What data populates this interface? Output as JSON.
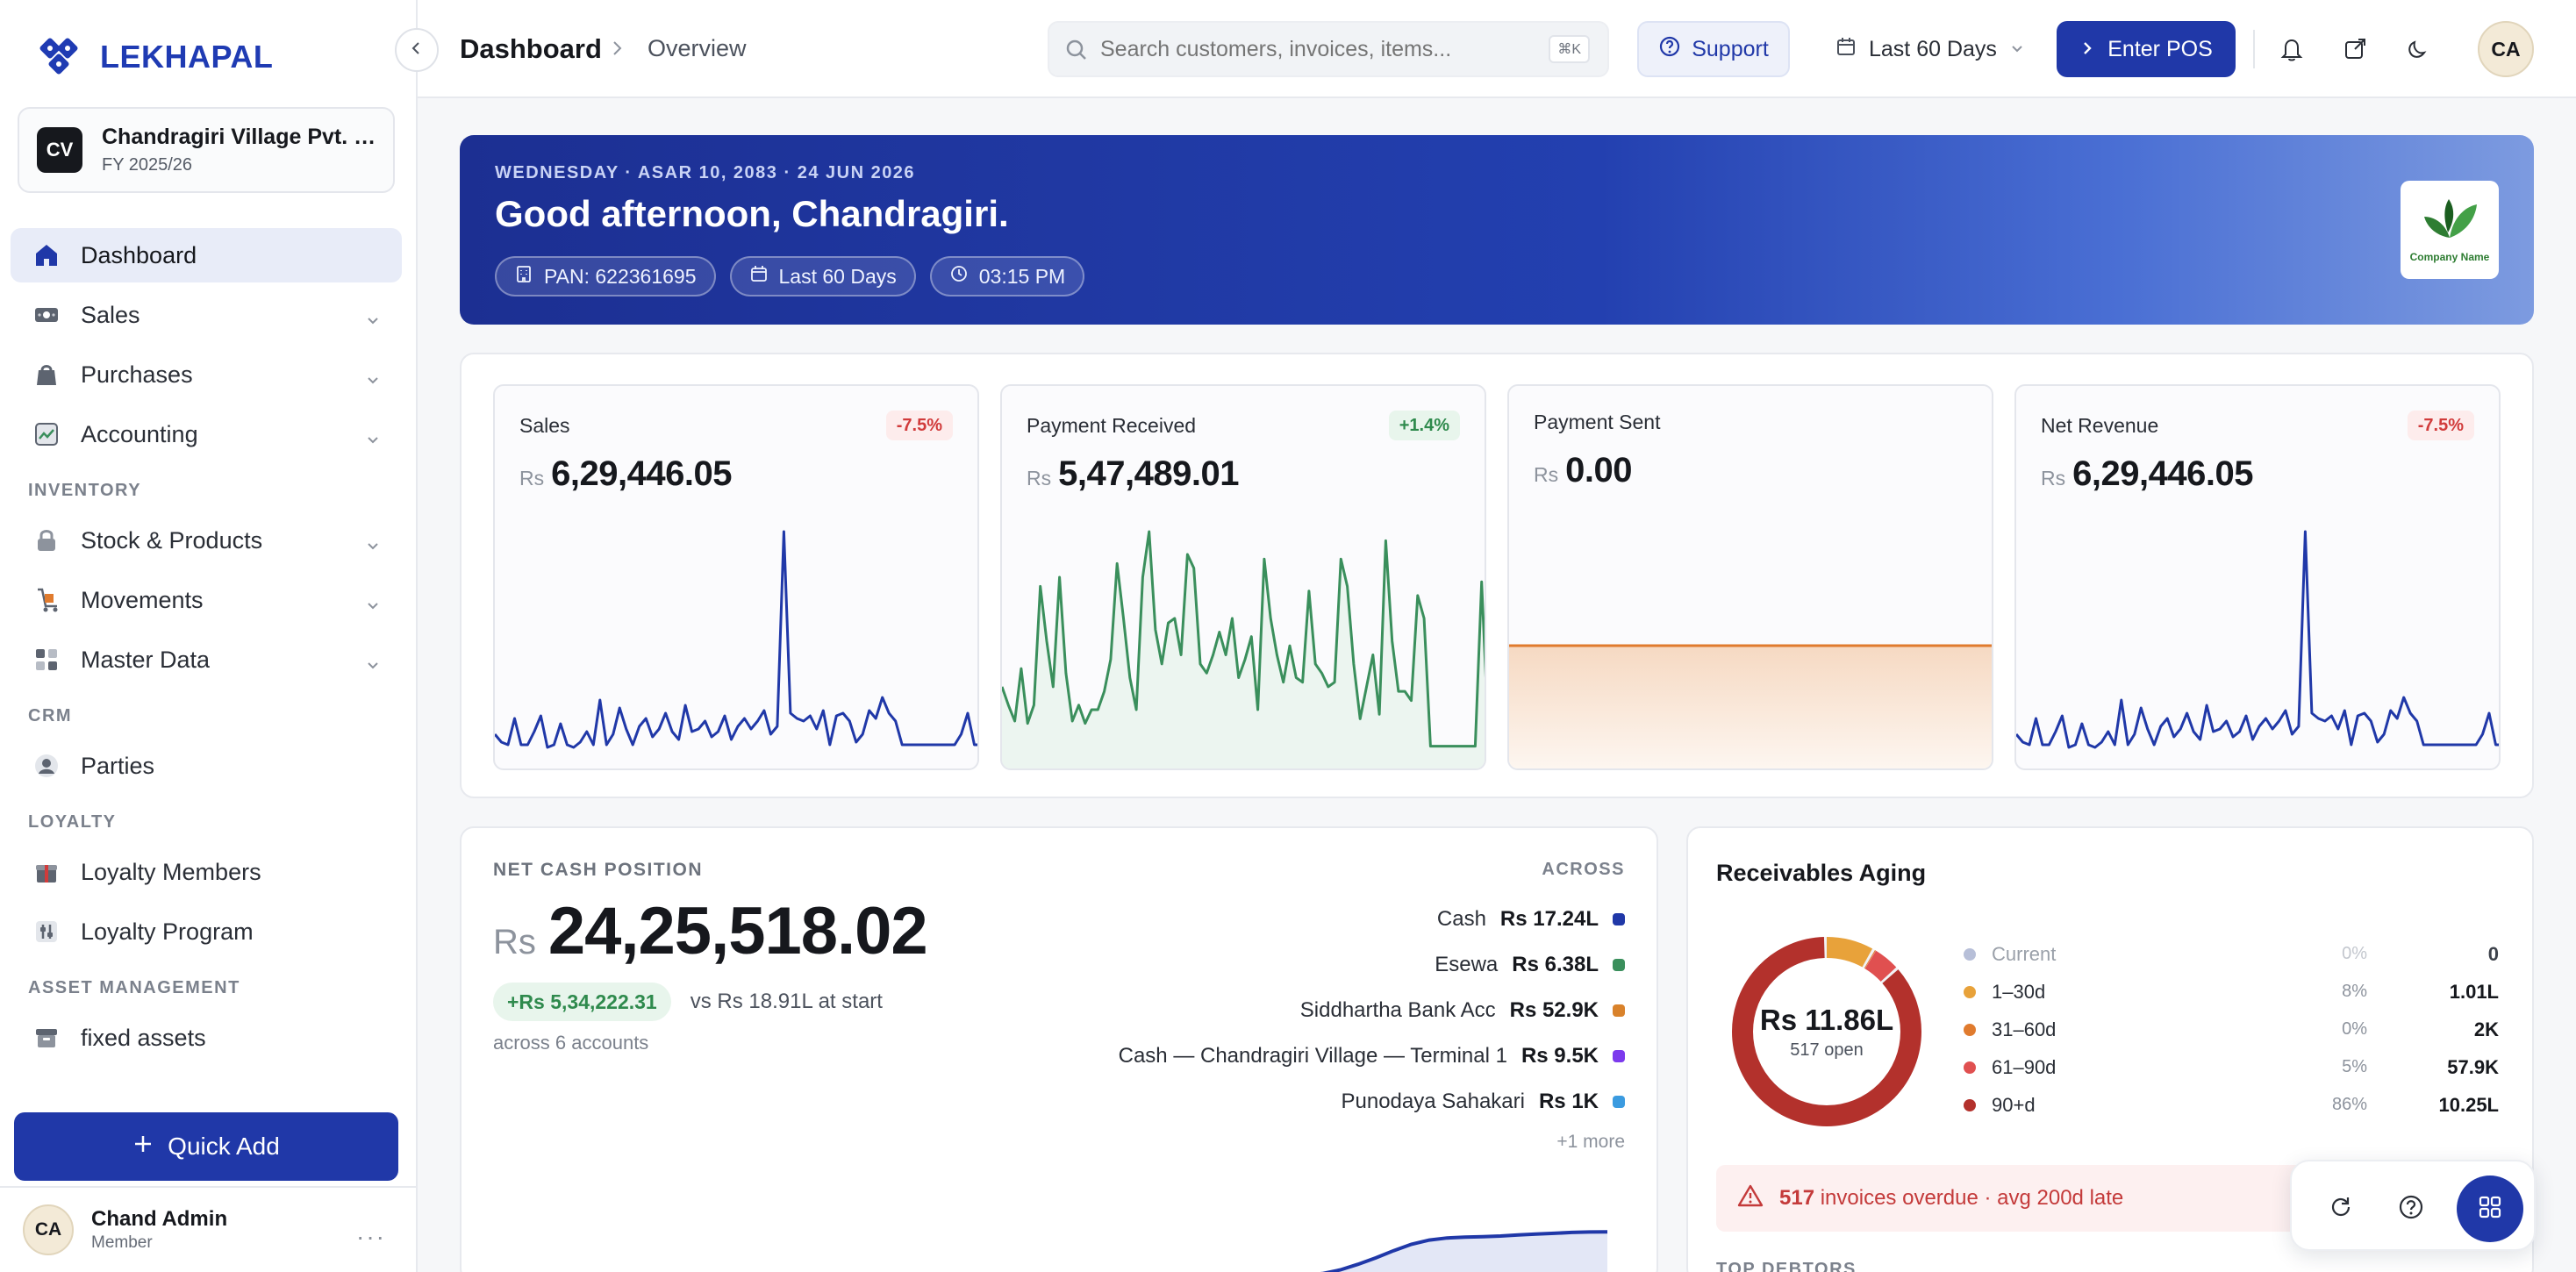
{
  "brand": {
    "name": "LEKHAPAL",
    "color": "#1f3bb3"
  },
  "company": {
    "initials": "CV",
    "name": "Chandragiri Village Pvt. Ltd.",
    "fy": "FY 2025/26"
  },
  "nav": {
    "items": [
      {
        "label": "Dashboard",
        "icon": "home-icon",
        "active": true
      },
      {
        "label": "Sales",
        "icon": "sales-icon",
        "chevron": true
      },
      {
        "label": "Purchases",
        "icon": "bag-icon",
        "chevron": true
      },
      {
        "label": "Accounting",
        "icon": "ledger-icon",
        "chevron": true
      }
    ],
    "sections": [
      {
        "title": "INVENTORY",
        "items": [
          {
            "label": "Stock & Products",
            "icon": "lock-box-icon",
            "chevron": true
          },
          {
            "label": "Movements",
            "icon": "dolly-icon",
            "chevron": true
          },
          {
            "label": "Master Data",
            "icon": "grid-icon",
            "chevron": true
          }
        ]
      },
      {
        "title": "CRM",
        "items": [
          {
            "label": "Parties",
            "icon": "person-icon"
          }
        ]
      },
      {
        "title": "LOYALTY",
        "items": [
          {
            "label": "Loyalty Members",
            "icon": "gift-icon"
          },
          {
            "label": "Loyalty Program",
            "icon": "sliders-icon"
          }
        ]
      },
      {
        "title": "ASSET MANAGEMENT",
        "items": [
          {
            "label": "fixed assets",
            "icon": "archive-icon"
          }
        ]
      }
    ]
  },
  "quick_add": {
    "label": "Quick Add"
  },
  "user": {
    "initials": "CA",
    "name": "Chand Admin",
    "role": "Member"
  },
  "topbar": {
    "title": "Dashboard",
    "subtitle": "Overview",
    "search_placeholder": "Search customers, invoices, items...",
    "search_kbd": "⌘K",
    "support_label": "Support",
    "range_label": "Last 60 Days",
    "pos_label": "Enter POS",
    "avatar_initials": "CA"
  },
  "hero": {
    "date": "WEDNESDAY · ASAR 10, 2083 · 24 JUN 2026",
    "greeting": "Good afternoon, Chandragiri.",
    "pan": "PAN: 622361695",
    "range": "Last 60 Days",
    "time": "03:15 PM",
    "logo_text": "Company Name"
  },
  "kpis": [
    {
      "label": "Sales",
      "currency": "Rs",
      "value": "6,29,446.05",
      "badge": "-7.5%",
      "trend": "neg",
      "color": "#2038a8"
    },
    {
      "label": "Payment Received",
      "currency": "Rs",
      "value": "5,47,489.01",
      "badge": "+1.4%",
      "trend": "pos",
      "color": "#3a8f5c"
    },
    {
      "label": "Payment Sent",
      "currency": "Rs",
      "value": "0.00",
      "badge": "",
      "trend": "flat",
      "color": "#e07b2e"
    },
    {
      "label": "Net Revenue",
      "currency": "Rs",
      "value": "6,29,446.05",
      "badge": "-7.5%",
      "trend": "neg",
      "color": "#2038a8"
    }
  ],
  "sparks": {
    "sales": [
      8,
      5,
      4,
      14,
      4,
      4,
      9,
      15,
      3,
      4,
      12,
      4,
      3,
      5,
      9,
      4,
      21,
      4,
      8,
      18,
      10,
      4,
      11,
      14,
      7,
      10,
      16,
      9,
      6,
      19,
      9,
      10,
      13,
      7,
      9,
      15,
      6,
      11,
      14,
      10,
      13,
      17,
      8,
      11,
      85,
      16,
      14,
      13,
      15,
      10,
      17,
      4,
      15,
      16,
      13,
      5,
      8,
      17,
      14,
      22,
      16,
      13,
      4,
      4,
      4,
      4,
      4,
      4,
      4,
      4,
      4,
      8,
      16,
      4,
      4
    ],
    "received": [
      30,
      22,
      15,
      38,
      14,
      22,
      74,
      50,
      30,
      78,
      36,
      15,
      22,
      14,
      20,
      20,
      28,
      42,
      84,
      60,
      34,
      20,
      78,
      98,
      55,
      40,
      58,
      60,
      44,
      88,
      82,
      40,
      36,
      44,
      54,
      44,
      60,
      34,
      42,
      52,
      20,
      86,
      60,
      44,
      32,
      48,
      34,
      32,
      72,
      40,
      36,
      30,
      32,
      86,
      74,
      40,
      16,
      30,
      44,
      18,
      94,
      50,
      28,
      28,
      24,
      70,
      60,
      4,
      4,
      4,
      4,
      4,
      4,
      4,
      4,
      76,
      12
    ],
    "net": [
      8,
      5,
      4,
      14,
      4,
      4,
      9,
      15,
      3,
      4,
      12,
      4,
      3,
      5,
      9,
      4,
      21,
      4,
      8,
      18,
      10,
      4,
      11,
      14,
      7,
      10,
      16,
      9,
      6,
      19,
      9,
      10,
      13,
      7,
      9,
      15,
      6,
      11,
      14,
      10,
      13,
      17,
      8,
      11,
      85,
      16,
      14,
      13,
      15,
      10,
      17,
      4,
      15,
      16,
      13,
      5,
      8,
      17,
      14,
      22,
      16,
      13,
      4,
      4,
      4,
      4,
      4,
      4,
      4,
      4,
      4,
      8,
      16,
      4,
      4
    ]
  },
  "cash": {
    "label": "NET CASH POSITION",
    "currency": "Rs",
    "value": "24,25,518.02",
    "delta": "+Rs 5,34,222.31",
    "vs": "vs Rs 18.91L at start",
    "across": "across 6 accounts",
    "across_head": "ACROSS",
    "accounts": [
      {
        "name": "Cash",
        "value": "Rs 17.24L",
        "color": "#2038a8"
      },
      {
        "name": "Esewa",
        "value": "Rs 6.38L",
        "color": "#3a8f5c"
      },
      {
        "name": "Siddhartha Bank Acc",
        "value": "Rs 52.9K",
        "color": "#d9822b"
      },
      {
        "name": "Cash — Chandragiri Village — Terminal 1",
        "value": "Rs 9.5K",
        "color": "#7c3aed"
      },
      {
        "name": "Punodaya Sahakari",
        "value": "Rs 1K",
        "color": "#3b9be0"
      }
    ],
    "more": "+1 more",
    "trend": [
      18.91,
      18.95,
      19.02,
      19.12,
      19.35,
      19.78,
      20.45,
      21.2,
      22.05,
      22.8,
      23.3,
      23.55,
      23.65,
      23.7,
      23.78,
      23.9,
      24.0,
      24.1,
      24.2,
      24.25,
      24.26
    ]
  },
  "aging": {
    "title": "Receivables Aging",
    "total": "Rs 11.86L",
    "open": "517 open",
    "rows": [
      {
        "name": "Current",
        "pct": "0%",
        "amount": "0",
        "color": "#b7bfd8",
        "share": 0
      },
      {
        "name": "1–30d",
        "pct": "8%",
        "amount": "1.01L",
        "color": "#e8a23a",
        "share": 8.5
      },
      {
        "name": "31–60d",
        "pct": "0%",
        "amount": "2K",
        "color": "#e07b2e",
        "share": 0.2
      },
      {
        "name": "61–90d",
        "pct": "5%",
        "amount": "57.9K",
        "color": "#e05050",
        "share": 4.9
      },
      {
        "name": "90+d",
        "pct": "86%",
        "amount": "10.25L",
        "color": "#b3312c",
        "share": 86.4
      }
    ],
    "overdue_count": "517",
    "overdue_text": "invoices overdue · avg 200d late",
    "debtors_label": "TOP DEBTORS"
  }
}
